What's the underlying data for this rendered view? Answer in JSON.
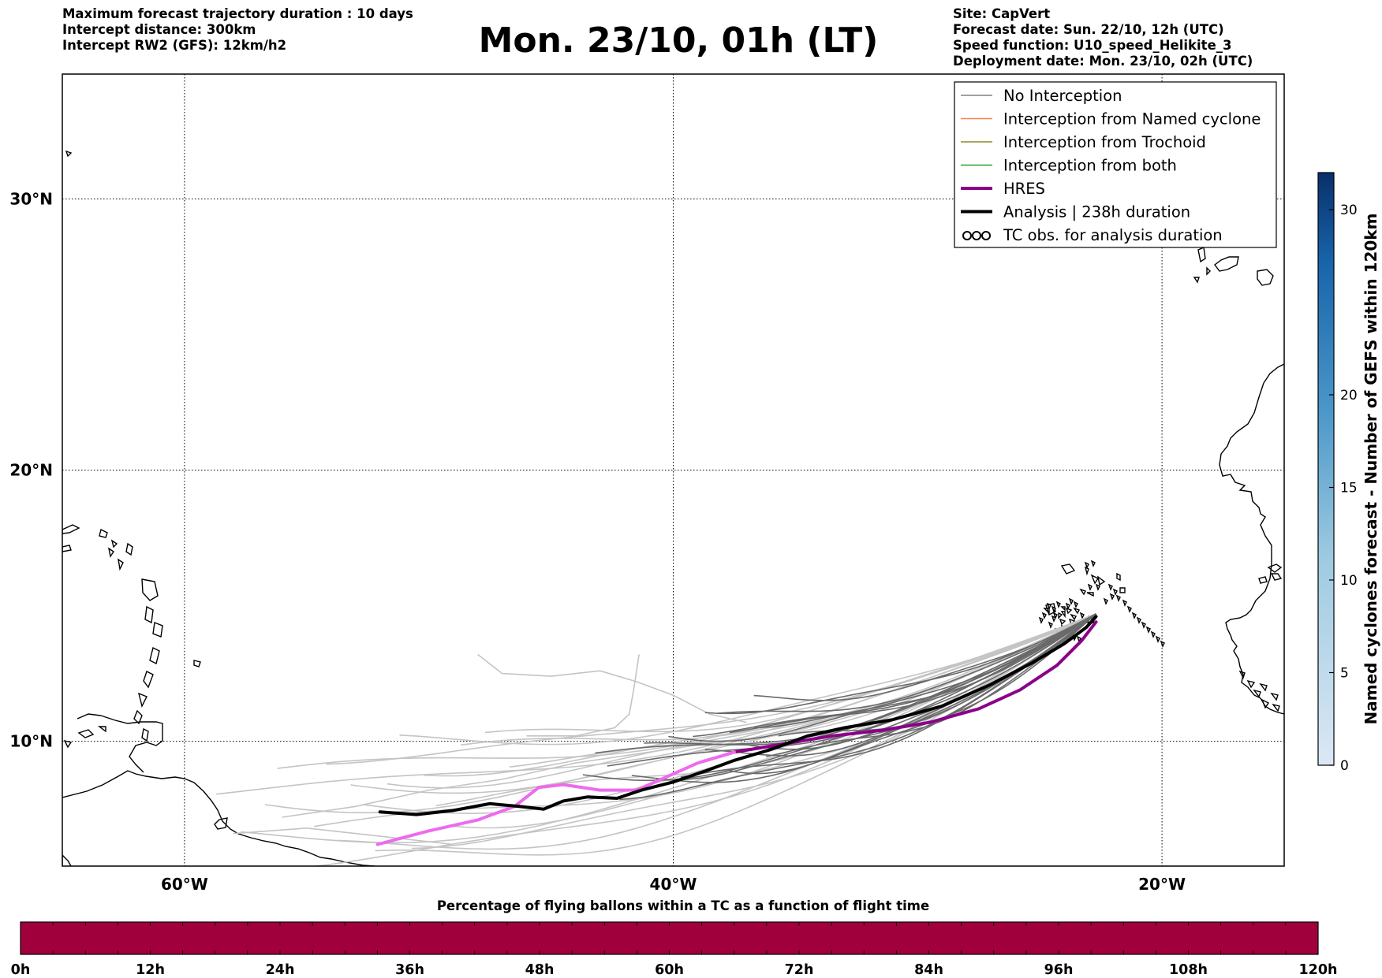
{
  "header": {
    "left_lines": [
      "Maximum forecast trajectory duration : 10 days",
      "Intercept distance: 300km",
      "Intercept RW2 (GFS):  12km/h2"
    ],
    "right_lines": [
      "Site: CapVert",
      "Forecast date: Sun. 22/10, 12h (UTC)",
      "Speed function: U10_speed_Helikite_3",
      "Deployment date: Mon. 23/10, 02h (UTC)"
    ],
    "title": "Mon. 23/10, 01h (LT)"
  },
  "map": {
    "lon_range": [
      -65,
      -15
    ],
    "lat_range": [
      5.4,
      34.6
    ],
    "lat_labels": [
      "30°N",
      "20°N",
      "10°N"
    ],
    "lat_values": [
      30,
      20,
      10
    ],
    "lon_labels": [
      "60°W",
      "40°W",
      "20°W"
    ],
    "lon_values": [
      -60,
      -40,
      -20
    ]
  },
  "legend": {
    "items": [
      {
        "label": "No Interception",
        "color": "#808080"
      },
      {
        "label": "Interception from Named cyclone",
        "color": "#ff7f50"
      },
      {
        "label": "Interception from Trochoid",
        "color": "#8b8b2a"
      },
      {
        "label": "Interception from both",
        "color": "#2ca02c"
      },
      {
        "label": "HRES",
        "color": "#8b008b"
      },
      {
        "label": "Analysis | 238h duration",
        "color": "#000000"
      },
      {
        "label": "TC obs. for analysis duration",
        "color": "#000000"
      }
    ]
  },
  "colorbar_right": {
    "label": "Named cyclones forecast - Number of GEFS within 120km",
    "ticks": [
      "0",
      "5",
      "10",
      "15",
      "20",
      "30"
    ],
    "tick_values": [
      0,
      5,
      10,
      15,
      20,
      30
    ],
    "max": 32
  },
  "colorbar_bottom": {
    "title": "Percentage of flying ballons within a TC as a function of flight time",
    "ticks": [
      "0h",
      "12h",
      "24h",
      "36h",
      "48h",
      "60h",
      "72h",
      "84h",
      "96h",
      "108h",
      "120h"
    ],
    "color": "#a0003c"
  },
  "chart_data": {
    "type": "line",
    "x_unit": "longitude (degrees, negative = W)",
    "y_unit": "latitude (degrees N)",
    "series": [
      {
        "name": "HRES",
        "color": "#8b008b",
        "points": [
          [
            -52.1,
            6.2
          ],
          [
            -50,
            6.7
          ],
          [
            -48,
            7.1
          ],
          [
            -46.5,
            7.6
          ],
          [
            -45.5,
            8.3
          ],
          [
            -44.5,
            8.4
          ],
          [
            -43,
            8.2
          ],
          [
            -41.5,
            8.2
          ],
          [
            -40.5,
            8.6
          ],
          [
            -39,
            9.2
          ],
          [
            -37.5,
            9.6
          ],
          [
            -35.5,
            9.9
          ],
          [
            -33.5,
            10.2
          ],
          [
            -31.5,
            10.4
          ],
          [
            -29.5,
            10.7
          ],
          [
            -27.5,
            11.2
          ],
          [
            -25.8,
            11.9
          ],
          [
            -24.3,
            12.8
          ],
          [
            -23.3,
            13.7
          ],
          [
            -22.7,
            14.4
          ]
        ]
      },
      {
        "name": "Analysis | 238h duration",
        "color": "#000000",
        "points": [
          [
            -52,
            7.4
          ],
          [
            -50.5,
            7.3
          ],
          [
            -49,
            7.45
          ],
          [
            -47.5,
            7.7
          ],
          [
            -46.3,
            7.6
          ],
          [
            -45.3,
            7.5
          ],
          [
            -44.5,
            7.8
          ],
          [
            -43.5,
            7.95
          ],
          [
            -42.3,
            7.9
          ],
          [
            -41.3,
            8.2
          ],
          [
            -40,
            8.5
          ],
          [
            -38.7,
            8.9
          ],
          [
            -37.5,
            9.3
          ],
          [
            -36,
            9.7
          ],
          [
            -34.5,
            10.2
          ],
          [
            -33,
            10.5
          ],
          [
            -31,
            10.8
          ],
          [
            -29,
            11.3
          ],
          [
            -27,
            12.1
          ],
          [
            -25.3,
            12.9
          ],
          [
            -24,
            13.6
          ],
          [
            -23.1,
            14.2
          ],
          [
            -22.7,
            14.6
          ]
        ]
      }
    ]
  }
}
